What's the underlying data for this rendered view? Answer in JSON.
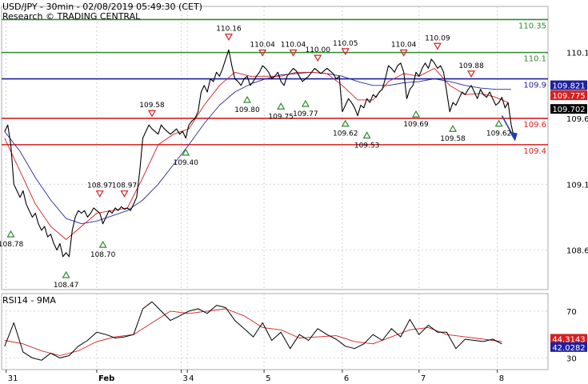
{
  "header": {
    "symbol_line": "USD/JPY - 30min - 02/08/2019 05:49:30 (CET)",
    "credit_line": "Research © TRADING CENTRAL"
  },
  "colors": {
    "resistance": "#2e8b2e",
    "pivot": "#1f1fa0",
    "support": "#d42020",
    "price": "#000000",
    "ma_fast": "#d42020",
    "ma_slow": "#2a2a9a",
    "arrow": "#1f3fae",
    "grid": "#c8c8c8"
  },
  "chart_data": [
    {
      "type": "line",
      "title": "USD/JPY - 30min - 02/08/2019 05:49:30 (CET)",
      "y_ticks": [
        "110.1",
        "109.6",
        "109.1",
        "108.6"
      ],
      "ylim": [
        108.3,
        110.45
      ],
      "x_ticks": [
        "31",
        "Feb",
        "3",
        "4",
        "5",
        "6",
        "7",
        "8"
      ],
      "x_tick_pos": [
        0.5,
        30,
        57.5,
        59.5,
        84.5,
        110,
        135,
        160.5
      ],
      "xlim": [
        -1,
        177
      ],
      "levels": [
        {
          "label": "110.35",
          "value": 110.35,
          "role": "resistance"
        },
        {
          "label": "110.1",
          "value": 110.1,
          "role": "resistance"
        },
        {
          "label": "109.9",
          "value": 109.9,
          "role": "pivot"
        },
        {
          "label": "109.6",
          "value": 109.6,
          "role": "support"
        },
        {
          "label": "109.4",
          "value": 109.4,
          "role": "support"
        }
      ],
      "price_labels": [
        {
          "label": "109.821",
          "value": 109.821,
          "bg": "#1f1fa0",
          "fg": "#ffffff"
        },
        {
          "label": "109.775",
          "value": 109.775,
          "bg": "#d42020",
          "fg": "#ffffff"
        },
        {
          "label": "109.702",
          "value": 109.702,
          "bg": "#000000",
          "fg": "#ffffff"
        }
      ],
      "annotations": [
        {
          "label": "110.16",
          "x": 73,
          "value": 110.16,
          "kind": "high"
        },
        {
          "label": "110.04",
          "x": 84,
          "value": 110.04,
          "kind": "high"
        },
        {
          "label": "110.04",
          "x": 94,
          "value": 110.04,
          "kind": "high"
        },
        {
          "label": "110.00",
          "x": 102,
          "value": 110.0,
          "kind": "high"
        },
        {
          "label": "110.05",
          "x": 111,
          "value": 110.05,
          "kind": "high"
        },
        {
          "label": "110.04",
          "x": 130,
          "value": 110.04,
          "kind": "high"
        },
        {
          "label": "110.09",
          "x": 141,
          "value": 110.09,
          "kind": "high"
        },
        {
          "label": "109.88",
          "x": 152,
          "value": 109.88,
          "kind": "high"
        },
        {
          "label": "109.58",
          "x": 48,
          "value": 109.58,
          "kind": "high"
        },
        {
          "label": "108.97",
          "x": 31,
          "value": 108.97,
          "kind": "high"
        },
        {
          "label": "108.97",
          "x": 39,
          "value": 108.97,
          "kind": "high"
        },
        {
          "label": "108.78",
          "x": 2,
          "value": 108.78,
          "kind": "low"
        },
        {
          "label": "108.47",
          "x": 20,
          "value": 108.47,
          "kind": "low"
        },
        {
          "label": "108.70",
          "x": 32,
          "value": 108.7,
          "kind": "low"
        },
        {
          "label": "109.40",
          "x": 59,
          "value": 109.4,
          "kind": "low"
        },
        {
          "label": "109.80",
          "x": 79,
          "value": 109.8,
          "kind": "low"
        },
        {
          "label": "109.75",
          "x": 90,
          "value": 109.75,
          "kind": "low"
        },
        {
          "label": "109.77",
          "x": 98,
          "value": 109.77,
          "kind": "low"
        },
        {
          "label": "109.62",
          "x": 111,
          "value": 109.62,
          "kind": "low"
        },
        {
          "label": "109.53",
          "x": 118,
          "value": 109.53,
          "kind": "low"
        },
        {
          "label": "109.69",
          "x": 134,
          "value": 109.69,
          "kind": "low"
        },
        {
          "label": "109.58",
          "x": 146,
          "value": 109.58,
          "kind": "low"
        },
        {
          "label": "109.62",
          "x": 161,
          "value": 109.62,
          "kind": "low"
        }
      ],
      "series": [
        {
          "name": "USD/JPY",
          "x": [
            0,
            1,
            2,
            3,
            4,
            5,
            6,
            7,
            8,
            9,
            10,
            11,
            12,
            13,
            14,
            15,
            16,
            17,
            18,
            19,
            20,
            21,
            22,
            23,
            24,
            25,
            26,
            27,
            28,
            29,
            30,
            31,
            32,
            33,
            34,
            35,
            36,
            37,
            38,
            39,
            40,
            41,
            42,
            43,
            44,
            45,
            46,
            47,
            48,
            49,
            50,
            51,
            52,
            53,
            54,
            55,
            56,
            57,
            58,
            59,
            60,
            61,
            62,
            63,
            64,
            65,
            66,
            67,
            68,
            69,
            70,
            71,
            72,
            73,
            74,
            75,
            76,
            77,
            78,
            79,
            80,
            81,
            82,
            83,
            84,
            85,
            86,
            87,
            88,
            89,
            90,
            91,
            92,
            93,
            94,
            95,
            96,
            97,
            98,
            99,
            100,
            101,
            102,
            103,
            104,
            105,
            106,
            107,
            108,
            109,
            110,
            111,
            112,
            113,
            114,
            115,
            116,
            117,
            118,
            119,
            120,
            121,
            122,
            123,
            124,
            125,
            126,
            127,
            128,
            129,
            130,
            131,
            132,
            133,
            134,
            135,
            136,
            137,
            138,
            139,
            140,
            141,
            142,
            143,
            144,
            145,
            146,
            147,
            148,
            149,
            150,
            151,
            152,
            153,
            154,
            155,
            156,
            157,
            158,
            159,
            160,
            161,
            162,
            163,
            164,
            165,
            166
          ],
          "values": [
            109.5,
            109.55,
            109.4,
            109.1,
            109.05,
            109.0,
            109.05,
            108.95,
            108.9,
            108.85,
            108.88,
            108.8,
            108.75,
            108.78,
            108.7,
            108.72,
            108.65,
            108.6,
            108.65,
            108.55,
            108.58,
            108.55,
            108.75,
            108.85,
            108.9,
            108.88,
            108.9,
            108.85,
            108.88,
            108.92,
            108.9,
            108.88,
            108.8,
            108.85,
            108.9,
            108.88,
            108.92,
            108.9,
            108.93,
            108.91,
            108.92,
            108.9,
            108.95,
            109.0,
            109.2,
            109.45,
            109.5,
            109.55,
            109.52,
            109.5,
            109.48,
            109.55,
            109.52,
            109.5,
            109.48,
            109.5,
            109.52,
            109.48,
            109.5,
            109.45,
            109.55,
            109.58,
            109.6,
            109.65,
            109.8,
            109.85,
            109.8,
            109.9,
            109.88,
            109.95,
            109.92,
            109.98,
            110.05,
            110.12,
            110.0,
            109.9,
            109.88,
            109.85,
            109.9,
            109.92,
            109.85,
            109.88,
            109.92,
            109.95,
            110.0,
            109.98,
            109.95,
            109.9,
            109.92,
            109.95,
            109.88,
            109.85,
            109.92,
            109.95,
            109.98,
            109.96,
            109.92,
            109.88,
            109.9,
            109.92,
            109.95,
            109.98,
            109.96,
            109.94,
            109.96,
            109.98,
            109.96,
            109.94,
            109.9,
            109.92,
            109.65,
            109.7,
            109.75,
            109.72,
            109.68,
            109.62,
            109.7,
            109.68,
            109.75,
            109.72,
            109.78,
            109.76,
            109.8,
            109.82,
            109.9,
            110.0,
            109.98,
            109.95,
            110.0,
            110.02,
            109.95,
            109.75,
            109.82,
            109.85,
            109.95,
            109.92,
            109.98,
            110.02,
            109.98,
            110.05,
            110.02,
            109.98,
            110.0,
            109.95,
            109.8,
            109.65,
            109.72,
            109.7,
            109.75,
            109.8,
            109.78,
            109.82,
            109.85,
            109.8,
            109.75,
            109.82,
            109.78,
            109.76,
            109.8,
            109.75,
            109.7,
            109.72,
            109.76,
            109.68,
            109.72,
            109.55,
            109.45
          ]
        },
        {
          "name": "",
          "x": [
            0,
            5,
            10,
            15,
            20,
            25,
            30,
            35,
            40,
            45,
            50,
            55,
            60,
            65,
            70,
            75,
            80,
            85,
            90,
            95,
            100,
            105,
            110,
            115,
            120,
            125,
            130,
            135,
            140,
            145,
            150,
            155,
            160,
            164
          ],
          "values": [
            109.45,
            109.2,
            108.95,
            108.78,
            108.68,
            108.78,
            108.88,
            108.9,
            108.92,
            109.15,
            109.4,
            109.48,
            109.52,
            109.7,
            109.85,
            109.95,
            109.92,
            109.92,
            109.92,
            109.95,
            109.95,
            109.94,
            109.85,
            109.74,
            109.74,
            109.88,
            109.94,
            109.92,
            109.98,
            109.85,
            109.78,
            109.79,
            109.76,
            109.72
          ]
        },
        {
          "name": "",
          "x": [
            0,
            5,
            10,
            15,
            20,
            25,
            30,
            35,
            40,
            45,
            50,
            55,
            60,
            65,
            70,
            75,
            80,
            85,
            90,
            95,
            100,
            105,
            110,
            115,
            120,
            125,
            130,
            135,
            140,
            145,
            150,
            155,
            160,
            165
          ],
          "values": [
            109.5,
            109.35,
            109.15,
            108.98,
            108.84,
            108.8,
            108.82,
            108.86,
            108.9,
            108.98,
            109.1,
            109.25,
            109.4,
            109.56,
            109.7,
            109.8,
            109.86,
            109.9,
            109.93,
            109.94,
            109.95,
            109.94,
            109.92,
            109.88,
            109.85,
            109.85,
            109.87,
            109.88,
            109.9,
            109.88,
            109.85,
            109.83,
            109.82,
            109.82
          ]
        }
      ],
      "arrow": {
        "x_from": 162,
        "y_from": 109.62,
        "x_to": 166,
        "y_to": 109.45
      }
    },
    {
      "type": "line",
      "title": "RSI14 - 9MA",
      "y_ticks": [
        "70",
        "30"
      ],
      "ylim": [
        20,
        85
      ],
      "xlim": [
        -1,
        177
      ],
      "value_labels": [
        {
          "label": "44.3143",
          "value": 44.3143,
          "bg": "#d42020",
          "fg": "#ffffff"
        },
        {
          "label": "42.0282",
          "value": 42.0282,
          "bg": "#1f1fa0",
          "fg": "#ffffff"
        }
      ],
      "series": [
        {
          "name": "RSI14",
          "x": [
            0,
            3,
            6,
            9,
            12,
            15,
            18,
            21,
            24,
            27,
            30,
            33,
            36,
            39,
            42,
            45,
            48,
            51,
            54,
            57,
            60,
            63,
            66,
            69,
            72,
            75,
            78,
            81,
            84,
            87,
            90,
            93,
            96,
            99,
            102,
            105,
            108,
            111,
            114,
            117,
            120,
            123,
            126,
            129,
            132,
            135,
            138,
            141,
            144,
            147,
            150,
            153,
            156,
            159,
            162
          ],
          "values": [
            40,
            60,
            35,
            30,
            28,
            34,
            30,
            32,
            40,
            45,
            52,
            50,
            47,
            48,
            50,
            72,
            78,
            70,
            62,
            66,
            70,
            72,
            68,
            75,
            73,
            62,
            55,
            48,
            60,
            45,
            52,
            38,
            50,
            45,
            55,
            50,
            46,
            40,
            38,
            42,
            50,
            45,
            55,
            48,
            63,
            50,
            58,
            52,
            52,
            38,
            46,
            45,
            44,
            46,
            42
          ]
        },
        {
          "name": "9MA",
          "x": [
            0,
            6,
            12,
            18,
            24,
            30,
            36,
            42,
            48,
            54,
            60,
            66,
            72,
            78,
            84,
            90,
            96,
            102,
            108,
            114,
            120,
            126,
            132,
            138,
            144,
            150,
            156,
            162
          ],
          "values": [
            45,
            42,
            36,
            32,
            36,
            44,
            48,
            50,
            60,
            70,
            68,
            70,
            72,
            66,
            56,
            54,
            47,
            48,
            49,
            44,
            42,
            48,
            54,
            56,
            50,
            48,
            46,
            44
          ]
        }
      ]
    }
  ],
  "rsi_title": "RSI14 - 9MA"
}
